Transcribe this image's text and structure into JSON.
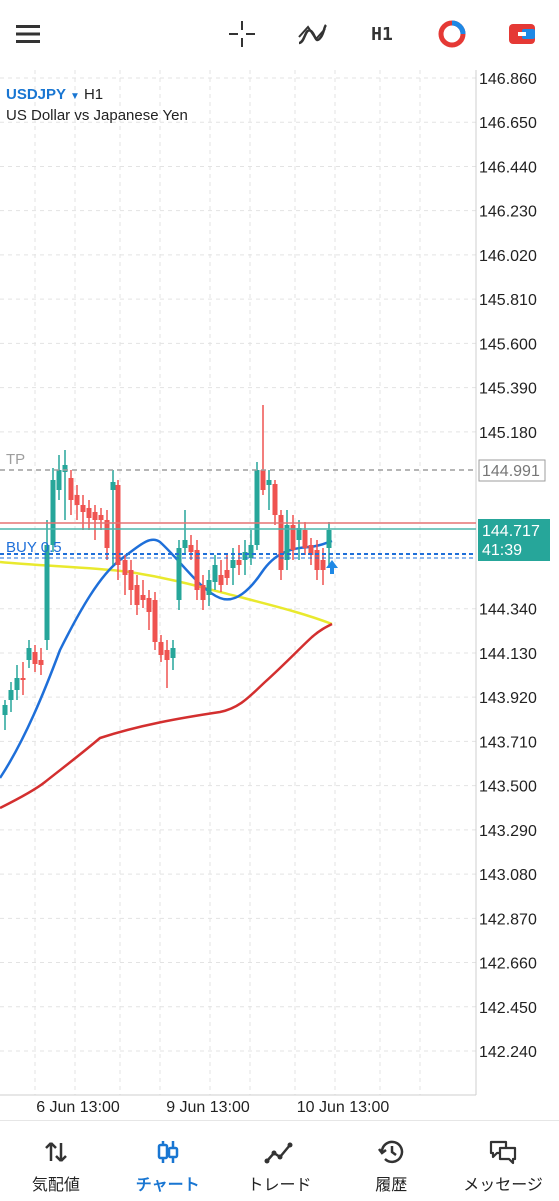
{
  "toolbar": {
    "menu_icon": "hamburger-icon",
    "crosshair_icon": "crosshair-icon",
    "indicators_icon": "indicators-icon",
    "timeframe_label": "H1",
    "chart_type_icon": "chart-type-icon",
    "objects_icon": "objects-icon"
  },
  "symbol": {
    "code": "USDJPY",
    "timeframe": "H1",
    "description": "US Dollar vs Japanese Yen"
  },
  "price_scale": [
    "146.860",
    "146.650",
    "146.440",
    "146.230",
    "146.020",
    "145.810",
    "145.600",
    "145.390",
    "145.180",
    "144.991",
    "144.340",
    "144.130",
    "143.920",
    "143.710",
    "143.500",
    "143.290",
    "143.080",
    "142.870",
    "142.660",
    "142.450",
    "142.240"
  ],
  "time_scale": [
    "6 Jun 13:00",
    "9 Jun 13:00",
    "10 Jun 13:00"
  ],
  "tp": {
    "label": "TP",
    "price": "144.991"
  },
  "position": {
    "label": "BUY 0.5"
  },
  "current_price": {
    "price": "144.717",
    "countdown": "41:39"
  },
  "colors": {
    "bull": "#26a69a",
    "bear": "#ef5350",
    "ma_blue": "#1e6fd9",
    "ma_yellow": "#e9e92e",
    "ma_red": "#d32f2f",
    "accent": "#1976d2",
    "grid": "#e3e3e3"
  },
  "bottom_nav": [
    {
      "label": "気配値",
      "icon": "quotes-icon"
    },
    {
      "label": "チャート",
      "icon": "chart-icon",
      "active": true
    },
    {
      "label": "トレード",
      "icon": "trade-icon"
    },
    {
      "label": "履歴",
      "icon": "history-icon"
    },
    {
      "label": "メッセージ",
      "icon": "messages-icon"
    }
  ]
}
